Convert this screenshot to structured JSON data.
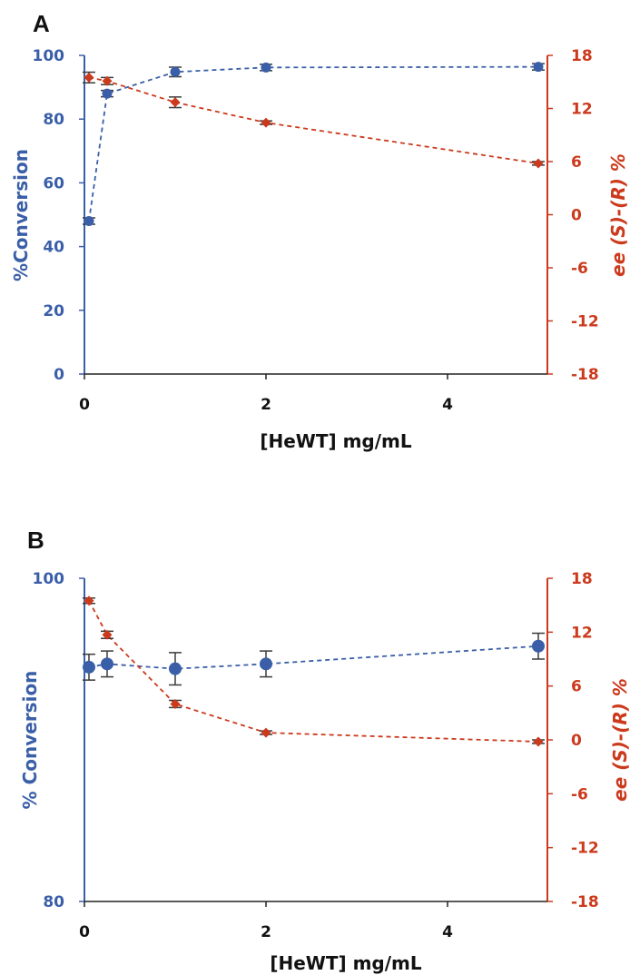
{
  "chart_data": [
    {
      "type": "line",
      "panel": "A",
      "xlabel": "[HeWT] mg/mL",
      "ylabel": "%Conversion",
      "y2label": "ee (S)-(R) %",
      "xlim": [
        0,
        5.1
      ],
      "ylim": [
        0,
        100
      ],
      "y2lim": [
        -18,
        18
      ],
      "xticks": [
        0,
        2,
        4
      ],
      "yticks": [
        0,
        20,
        40,
        60,
        80,
        100
      ],
      "y2ticks": [
        -18,
        -12,
        -6,
        0,
        6,
        12,
        18
      ],
      "grid": false,
      "colors": {
        "conversion": "#3a5fa8",
        "ee": "#cc3a1d",
        "axis_left": "#3a5fa8",
        "axis_right": "#cc3a1d"
      },
      "series": [
        {
          "axis": "left",
          "marker": "circle",
          "x": [
            0.05,
            0.25,
            1,
            2,
            5
          ],
          "y": [
            48,
            88,
            94.8,
            96.2,
            96.4
          ],
          "err": [
            1,
            1,
            1.5,
            1,
            1
          ]
        },
        {
          "axis": "right",
          "marker": "diamond",
          "x": [
            0.05,
            0.25,
            1,
            2,
            5
          ],
          "y": [
            15.5,
            15.1,
            12.7,
            10.4,
            5.8
          ],
          "err": [
            0.6,
            0.4,
            0.6,
            0.2,
            0.2
          ]
        }
      ]
    },
    {
      "type": "line",
      "panel": "B",
      "xlabel": "[HeWT] mg/mL",
      "ylabel": "% Conversion",
      "y2label": "ee (S)-(R) %",
      "xlim": [
        0,
        5.1
      ],
      "ylim": [
        80,
        100
      ],
      "y2lim": [
        -18,
        18
      ],
      "xticks": [
        0,
        2,
        4
      ],
      "yticks": [
        80,
        100
      ],
      "y2ticks": [
        -18,
        -12,
        -6,
        0,
        6,
        12,
        18
      ],
      "grid": false,
      "colors": {
        "conversion": "#3a5fa8",
        "ee": "#cc3a1d",
        "axis_left": "#3a5fa8",
        "axis_right": "#cc3a1d"
      },
      "series": [
        {
          "axis": "left",
          "marker": "circle",
          "x": [
            0.05,
            0.25,
            1,
            2,
            5
          ],
          "y": [
            94.5,
            94.7,
            94.4,
            94.7,
            95.8
          ],
          "err": [
            0.8,
            0.8,
            1.0,
            0.8,
            0.8
          ]
        },
        {
          "axis": "right",
          "marker": "diamond",
          "x": [
            0.05,
            0.25,
            1,
            2,
            5
          ],
          "y": [
            15.5,
            11.7,
            4.0,
            0.8,
            -0.2
          ],
          "err": [
            0.3,
            0.4,
            0.4,
            0.2,
            0.2
          ]
        }
      ]
    }
  ]
}
